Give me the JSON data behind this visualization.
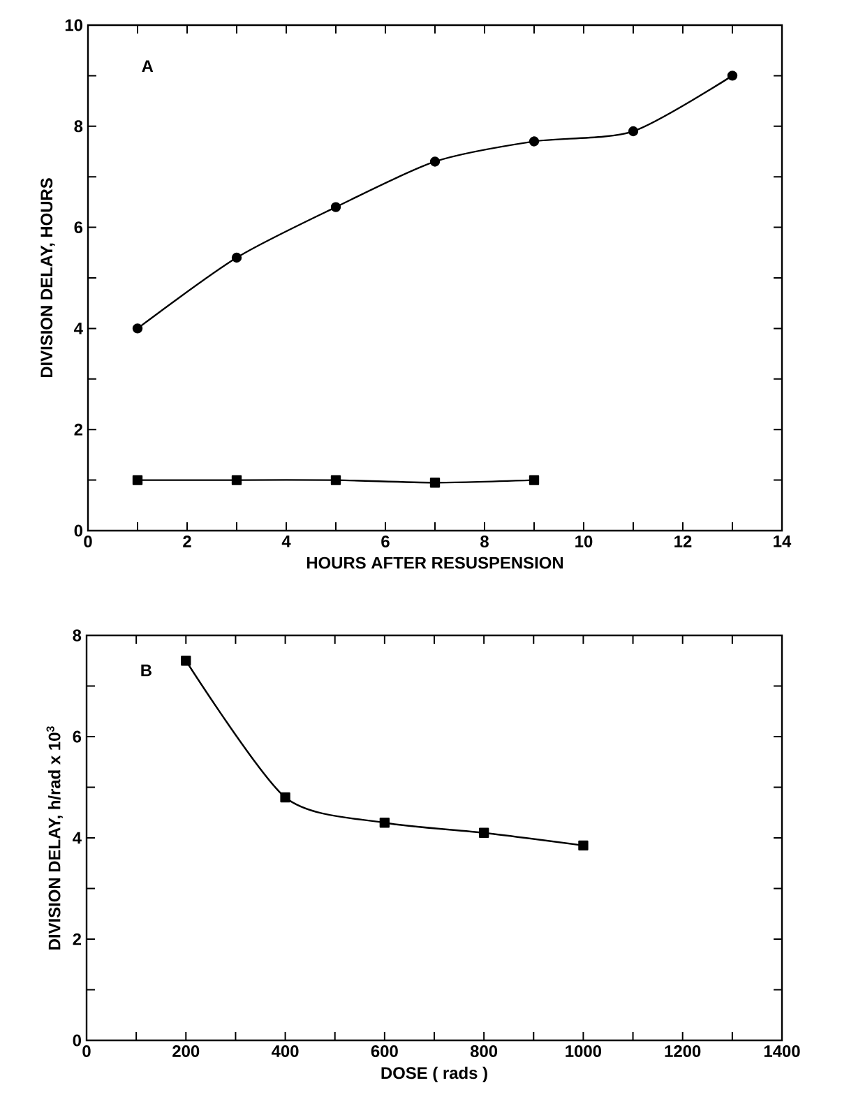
{
  "chart_data": [
    {
      "type": "line",
      "xlabel": "HOURS AFTER RESUSPENSION",
      "ylabel": "DIVISION DELAY, HOURS",
      "annotations": [
        "A"
      ],
      "xlim": [
        0,
        14
      ],
      "ylim": [
        0,
        10
      ],
      "xticks": [
        0,
        {
          "value": 1,
          "label": null
        },
        2,
        {
          "value": 3,
          "label": null
        },
        4,
        {
          "value": 5,
          "label": null
        },
        6,
        {
          "value": 7,
          "label": null
        },
        8,
        {
          "value": 9,
          "label": null
        },
        10,
        {
          "value": 11,
          "label": null
        },
        12,
        {
          "value": 13,
          "label": null
        },
        14
      ],
      "yticks": [
        0,
        {
          "value": 1,
          "label": null
        },
        2,
        {
          "value": 3,
          "label": null
        },
        4,
        {
          "value": 5,
          "label": null
        },
        6,
        {
          "value": 7,
          "label": null
        },
        8,
        {
          "value": 9,
          "label": null
        },
        10
      ],
      "line_style": "solid",
      "grid": false,
      "series": [
        {
          "color": "#000000",
          "marker": "circle",
          "x": [
            1,
            3,
            5,
            7,
            9,
            11,
            13
          ],
          "values": [
            4.0,
            5.4,
            6.4,
            7.3,
            7.7,
            7.9,
            9.0
          ]
        },
        {
          "color": "#000000",
          "marker": "square",
          "x": [
            1,
            3,
            5,
            7,
            9
          ],
          "values": [
            1.0,
            1.0,
            1.0,
            0.95,
            1.0
          ]
        }
      ]
    },
    {
      "type": "line",
      "xlabel": "DOSE ( rads )",
      "ylabel": "DIVISION DELAY, h/rad x 10$^{3}$",
      "annotations": [
        "B"
      ],
      "xlim": [
        0,
        1400
      ],
      "ylim": [
        0,
        8
      ],
      "xticks": [
        0,
        {
          "value": 100,
          "label": null
        },
        200,
        {
          "value": 300,
          "label": null
        },
        400,
        {
          "value": 500,
          "label": null
        },
        600,
        {
          "value": 700,
          "label": null
        },
        800,
        {
          "value": 900,
          "label": null
        },
        1000,
        {
          "value": 1100,
          "label": null
        },
        1200,
        {
          "value": 1300,
          "label": null
        },
        1400
      ],
      "yticks": [
        0,
        {
          "value": 1,
          "label": null
        },
        2,
        {
          "value": 3,
          "label": null
        },
        4,
        {
          "value": 5,
          "label": null
        },
        6,
        {
          "value": 7,
          "label": null
        },
        8
      ],
      "line_style": "solid",
      "grid": false,
      "series": [
        {
          "color": "#000000",
          "marker": "square",
          "x": [
            200,
            400,
            600,
            800,
            1000
          ],
          "values": [
            7.5,
            4.8,
            4.3,
            4.1,
            3.85
          ]
        }
      ]
    }
  ]
}
